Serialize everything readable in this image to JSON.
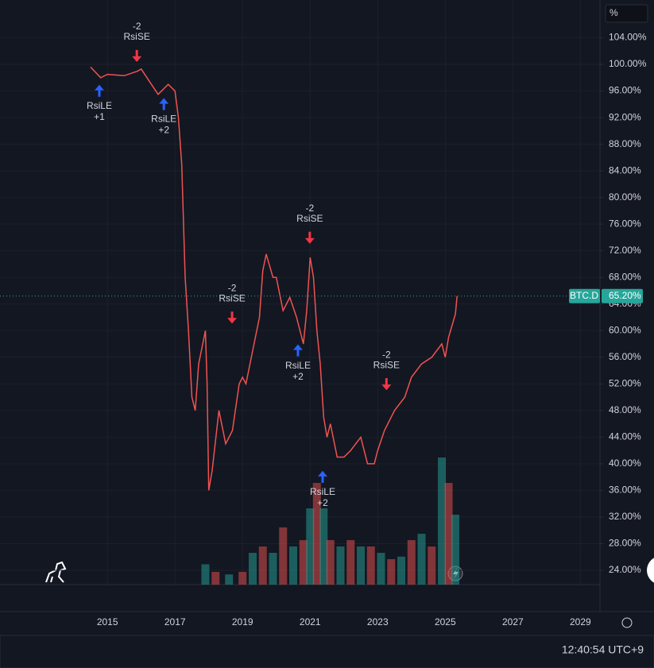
{
  "chart_data": {
    "type": "line",
    "unit_box": "%",
    "series": [
      {
        "name": "BTC.D",
        "color": "#ef5350",
        "x": [
          2014.5,
          2014.8,
          2015.0,
          2015.5,
          2015.9,
          2016.0,
          2016.3,
          2016.5,
          2016.8,
          2017.0,
          2017.1,
          2017.2,
          2017.3,
          2017.4,
          2017.5,
          2017.6,
          2017.7,
          2017.9,
          2017.95,
          2018.0,
          2018.1,
          2018.3,
          2018.5,
          2018.7,
          2018.9,
          2019.0,
          2019.1,
          2019.3,
          2019.5,
          2019.6,
          2019.7,
          2019.9,
          2020.0,
          2020.2,
          2020.4,
          2020.6,
          2020.8,
          2020.9,
          2021.0,
          2021.1,
          2021.2,
          2021.3,
          2021.4,
          2021.5,
          2021.6,
          2021.8,
          2022.0,
          2022.2,
          2022.5,
          2022.7,
          2022.9,
          2023.0,
          2023.2,
          2023.5,
          2023.8,
          2024.0,
          2024.3,
          2024.6,
          2024.9,
          2025.0,
          2025.1,
          2025.3,
          2025.35
        ],
        "values": [
          99.6,
          98,
          98.5,
          98.3,
          99,
          99.3,
          97,
          95.5,
          97,
          96,
          92,
          85,
          68,
          60,
          50,
          48,
          55,
          60,
          52,
          36,
          39,
          48,
          43,
          45,
          52,
          53,
          52,
          57,
          62,
          69,
          71.5,
          68,
          68,
          63,
          65,
          62,
          58,
          63,
          71,
          68,
          60,
          55,
          47,
          44,
          46,
          41,
          41,
          42,
          44,
          40,
          40,
          42,
          45,
          48,
          50,
          53,
          55,
          56,
          58,
          56,
          59,
          62.5,
          65.2
        ]
      }
    ],
    "last_value": {
      "value": 65.2,
      "label": "65.20%"
    },
    "volume": {
      "colors": [
        "#26a69a",
        "#ef5350"
      ],
      "ylim": [
        0,
        100
      ],
      "x": [
        2017.9,
        2018.2,
        2018.6,
        2019.0,
        2019.3,
        2019.6,
        2019.9,
        2020.2,
        2020.5,
        2020.8,
        2021.0,
        2021.2,
        2021.4,
        2021.6,
        2021.9,
        2022.2,
        2022.5,
        2022.8,
        2023.1,
        2023.4,
        2023.7,
        2024.0,
        2024.3,
        2024.6,
        2024.9,
        2025.1,
        2025.3
      ],
      "values": [
        16,
        10,
        8,
        10,
        25,
        30,
        25,
        45,
        30,
        35,
        60,
        80,
        60,
        35,
        30,
        35,
        30,
        30,
        25,
        20,
        22,
        35,
        40,
        30,
        100,
        80,
        55
      ]
    },
    "annotations": [
      {
        "x": 2014.76,
        "y": 98,
        "side": "long",
        "lines": [
          "RsiLE",
          "+1"
        ]
      },
      {
        "x": 2015.87,
        "y": 99.3,
        "side": "short",
        "lines": [
          "-2",
          "RsiSE"
        ]
      },
      {
        "x": 2016.67,
        "y": 96,
        "side": "long",
        "lines": [
          "RsiLE",
          "+2"
        ]
      },
      {
        "x": 2018.69,
        "y": 60,
        "side": "short",
        "lines": [
          "-2",
          "RsiSE"
        ]
      },
      {
        "x": 2020.64,
        "y": 59,
        "side": "long",
        "lines": [
          "RsiLE",
          "+2"
        ]
      },
      {
        "x": 2020.99,
        "y": 72,
        "side": "short",
        "lines": [
          "-2",
          "RsiSE"
        ]
      },
      {
        "x": 2021.37,
        "y": 40,
        "side": "long",
        "lines": [
          "RsiLE",
          "+2"
        ]
      },
      {
        "x": 2023.26,
        "y": 50,
        "side": "short",
        "lines": [
          "-2",
          "RsiSE"
        ]
      }
    ],
    "xlim": [
      2011.82,
      2029.58
    ],
    "xticks": [
      2015,
      2017,
      2019,
      2021,
      2023,
      2025,
      2027,
      2029
    ],
    "ylim": [
      21.85,
      109.67
    ],
    "yticks": [
      {
        "value": 24,
        "label": "24.00%"
      },
      {
        "value": 28,
        "label": "28.00%"
      },
      {
        "value": 32,
        "label": "32.00%"
      },
      {
        "value": 36,
        "label": "36.00%"
      },
      {
        "value": 40,
        "label": "40.00%"
      },
      {
        "value": 44,
        "label": "44.00%"
      },
      {
        "value": 48,
        "label": "48.00%"
      },
      {
        "value": 52,
        "label": "52.00%"
      },
      {
        "value": 56,
        "label": "56.00%"
      },
      {
        "value": 60,
        "label": "60.00%"
      },
      {
        "value": 64,
        "label": "64.00%"
      },
      {
        "value": 68,
        "label": "68.00%"
      },
      {
        "value": 72,
        "label": "72.00%"
      },
      {
        "value": 76,
        "label": "76.00%"
      },
      {
        "value": 80,
        "label": "80.00%"
      },
      {
        "value": 84,
        "label": "84.00%"
      },
      {
        "value": 88,
        "label": "88.00%"
      },
      {
        "value": 92,
        "label": "92.00%"
      },
      {
        "value": 96,
        "label": "96.00%"
      },
      {
        "value": 100,
        "label": "100.00%"
      },
      {
        "value": 104,
        "label": "104.00%"
      }
    ],
    "grid": true,
    "clock": "12:40:54 UTC+9"
  }
}
